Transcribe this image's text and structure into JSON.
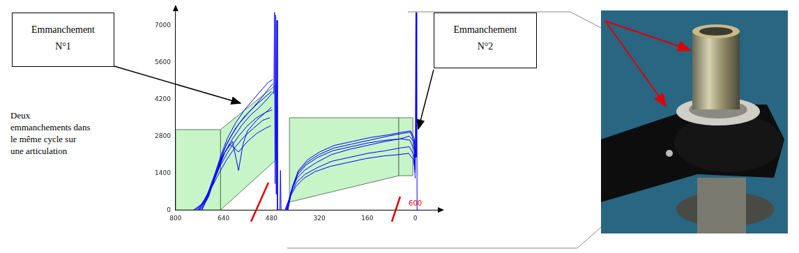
{
  "chart_data": {
    "type": "line",
    "color": "#0000ff",
    "grid": false,
    "xlim": [
      800,
      -80
    ],
    "xticks": [
      800,
      640,
      480,
      320,
      160,
      0
    ],
    "ylim": [
      0,
      7600
    ],
    "yticks": [
      0,
      1400,
      2800,
      4200,
      5600,
      7000
    ],
    "annotations": [
      {
        "text": "600",
        "color": "#ff0000"
      }
    ],
    "windows": [
      {
        "x": [
          800,
          650,
          650,
          800
        ],
        "y": [
          0,
          0,
          3050,
          3050
        ],
        "color": "#c8f5c8"
      },
      {
        "x": [
          650,
          465,
          465,
          650
        ],
        "y": [
          0,
          1900,
          4750,
          3050
        ],
        "color": "#c8f5c8"
      },
      {
        "x": [
          420,
          55,
          55,
          420
        ],
        "y": [
          300,
          1300,
          3500,
          3500
        ],
        "color": "#c8f5c8"
      },
      {
        "x": [
          55,
          8,
          8,
          55
        ],
        "y": [
          1300,
          1300,
          3500,
          3500
        ],
        "color": "#c8f5c8"
      }
    ],
    "series": [
      {
        "x": [
          725,
          700,
          680,
          660,
          640,
          610,
          580,
          550,
          520,
          495,
          480,
          472
        ],
        "values": [
          0,
          350,
          900,
          1500,
          2100,
          2700,
          3200,
          3600,
          3900,
          4200,
          4400,
          4500
        ]
      },
      {
        "x": [
          715,
          690,
          670,
          650,
          630,
          600,
          570,
          540,
          510,
          490,
          475
        ],
        "values": [
          0,
          500,
          1200,
          1900,
          2500,
          3100,
          3550,
          3900,
          4300,
          4600,
          4800
        ]
      },
      {
        "x": [
          735,
          710,
          690,
          670,
          650,
          620,
          590,
          560,
          530,
          500,
          478
        ],
        "values": [
          0,
          250,
          700,
          1200,
          1700,
          2300,
          2800,
          3200,
          3500,
          3700,
          3800
        ]
      },
      {
        "x": [
          720,
          695,
          675,
          655,
          635,
          610,
          590,
          575,
          560,
          530,
          500,
          480
        ],
        "values": [
          0,
          400,
          1000,
          1600,
          2200,
          2600,
          1500,
          2500,
          3000,
          3400,
          3700,
          3900
        ]
      },
      {
        "x": [
          740,
          715,
          695,
          675,
          655,
          630,
          600,
          570,
          540,
          510,
          485
        ],
        "values": [
          0,
          200,
          550,
          950,
          1400,
          1900,
          2400,
          2800,
          3100,
          3400,
          3500
        ]
      },
      {
        "x": [
          712,
          688,
          668,
          648,
          628,
          600,
          570,
          540,
          510,
          490,
          476
        ],
        "values": [
          0,
          600,
          1400,
          2100,
          2700,
          3300,
          3800,
          4200,
          4600,
          4850,
          4950
        ]
      },
      {
        "x": [
          730,
          705,
          685,
          665,
          645,
          620,
          590,
          560,
          530,
          500,
          482
        ],
        "values": [
          0,
          300,
          800,
          1400,
          2000,
          2500,
          2200,
          2600,
          2900,
          3100,
          3200
        ]
      },
      {
        "x": [
          722,
          698,
          678,
          658,
          638,
          615,
          590,
          560,
          530,
          500,
          480
        ],
        "values": [
          0,
          450,
          1100,
          1700,
          2300,
          2800,
          3250,
          3650,
          4000,
          4300,
          4500
        ]
      },
      {
        "x": [
          472,
          470,
          468,
          466,
          464,
          462,
          460,
          458,
          452,
          450,
          448,
          440
        ],
        "values": [
          4400,
          7500,
          1000,
          7400,
          600,
          7200,
          0,
          0,
          0,
          1500,
          0,
          0
        ]
      },
      {
        "x": [
          430,
          415,
          395,
          370,
          330,
          280,
          220,
          160,
          100,
          50,
          20,
          5,
          0
        ],
        "values": [
          0,
          700,
          1200,
          1500,
          1800,
          2100,
          2300,
          2450,
          2600,
          2700,
          2800,
          2600,
          1800
        ]
      },
      {
        "x": [
          425,
          410,
          390,
          360,
          320,
          270,
          210,
          150,
          90,
          45,
          15,
          3,
          0
        ],
        "values": [
          0,
          900,
          1500,
          1900,
          2200,
          2450,
          2600,
          2750,
          2850,
          2950,
          3000,
          2700,
          2000
        ]
      },
      {
        "x": [
          435,
          418,
          398,
          372,
          335,
          285,
          225,
          165,
          105,
          55,
          22,
          6,
          0
        ],
        "values": [
          0,
          500,
          900,
          1200,
          1450,
          1650,
          1800,
          1950,
          2050,
          2100,
          2150,
          1900,
          1400
        ]
      },
      {
        "x": [
          428,
          412,
          392,
          365,
          325,
          275,
          215,
          155,
          95,
          48,
          18,
          4,
          0
        ],
        "values": [
          0,
          800,
          1350,
          1700,
          2000,
          2250,
          2400,
          2550,
          2650,
          2700,
          2650,
          2300,
          1500
        ]
      },
      {
        "x": [
          432,
          416,
          396,
          368,
          328,
          278,
          218,
          158,
          98,
          52,
          20,
          5,
          0
        ],
        "values": [
          0,
          600,
          1050,
          1350,
          1600,
          1850,
          2000,
          2150,
          2250,
          2350,
          2400,
          2100,
          1200
        ]
      },
      {
        "x": [
          426,
          410,
          390,
          362,
          322,
          272,
          212,
          152,
          92,
          46,
          16,
          4,
          0
        ],
        "values": [
          0,
          850,
          1450,
          1800,
          2100,
          2350,
          2500,
          2650,
          2800,
          2900,
          2950,
          2600,
          1700
        ]
      },
      {
        "x": [
          0,
          -2,
          -3,
          -5,
          -6
        ],
        "values": [
          1500,
          7500,
          2000,
          7500,
          0
        ]
      }
    ]
  },
  "callouts": [
    {
      "lines": [
        "Emmanchement",
        "N°1"
      ]
    },
    {
      "lines": [
        "Emmanchement",
        "N°2"
      ]
    }
  ],
  "caption": [
    "Deux",
    "emmanchements dans",
    "le même cycle sur",
    "une articulation"
  ]
}
